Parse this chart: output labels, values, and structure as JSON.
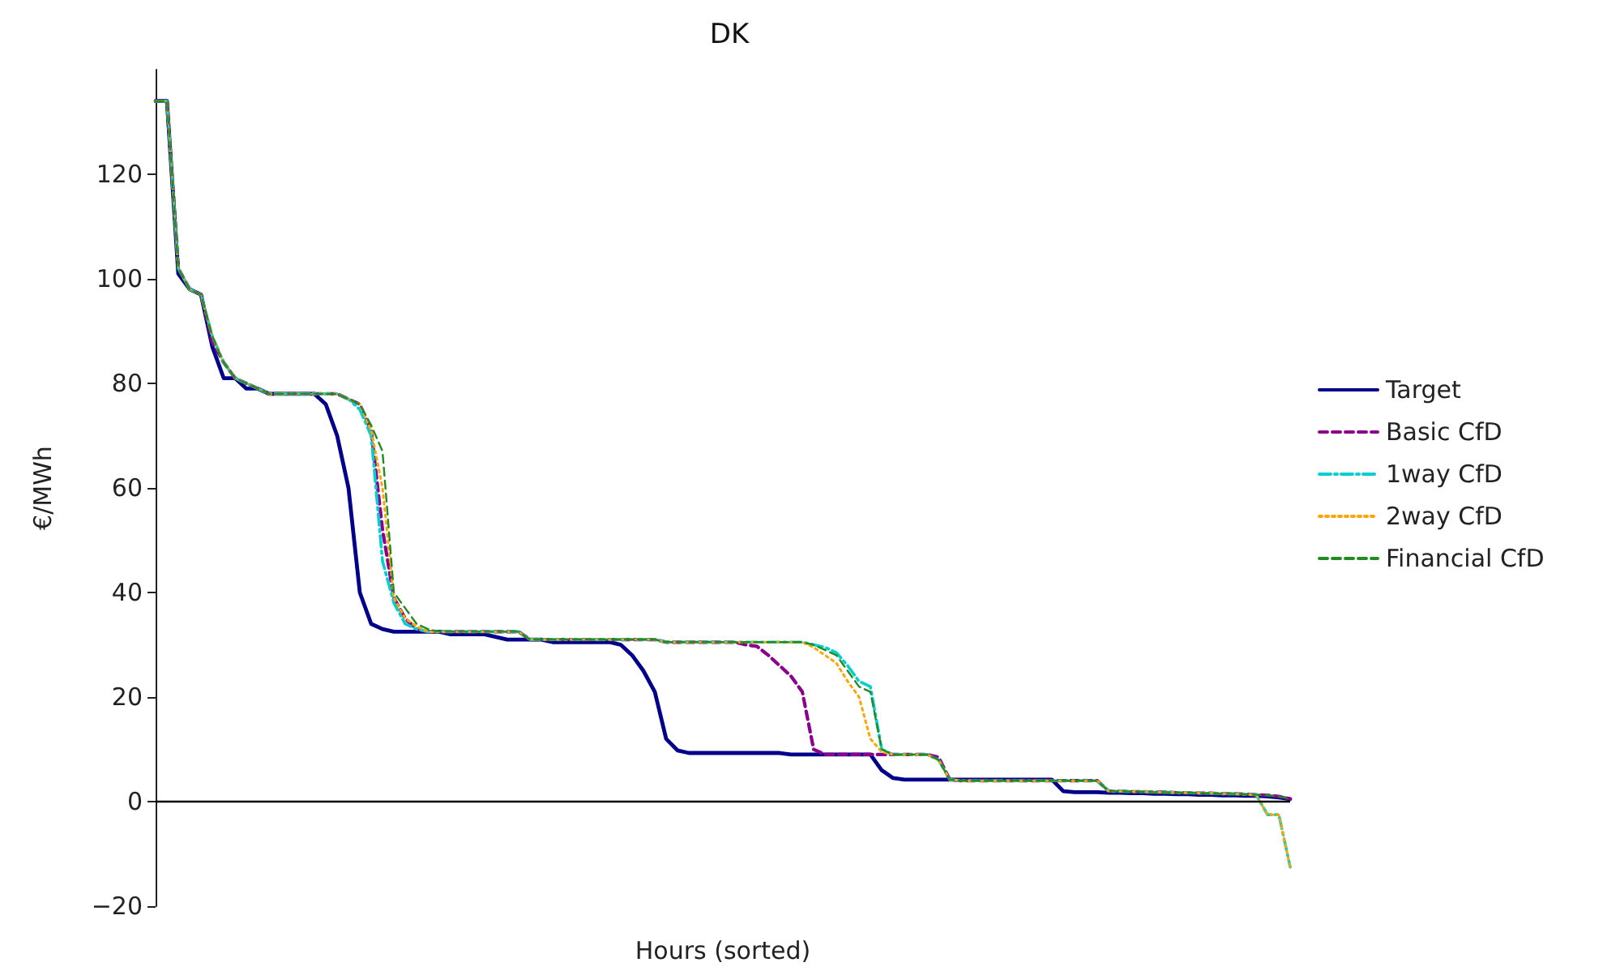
{
  "chart_data": {
    "type": "line",
    "title": "DK",
    "xlabel": "Hours (sorted)",
    "ylabel": "€/MWh",
    "categories": [
      null,
      null,
      null,
      null,
      null,
      null,
      null,
      null,
      null,
      null,
      null,
      null,
      null,
      null,
      null,
      null,
      null,
      null,
      null,
      null,
      null,
      null,
      null,
      null,
      null,
      null,
      null,
      null,
      null,
      null,
      null,
      null,
      null,
      null,
      null,
      null,
      null,
      null,
      null,
      null,
      null,
      null,
      null,
      null,
      null,
      null,
      null,
      null,
      null,
      null,
      null,
      null,
      null,
      null,
      null,
      null,
      null,
      null,
      null,
      null,
      null,
      null,
      null,
      null,
      null,
      null,
      null,
      null,
      null,
      null,
      null,
      null,
      null,
      null,
      null,
      null,
      null,
      null,
      null,
      null,
      null,
      null,
      null,
      null,
      null,
      null,
      null,
      null,
      null,
      null,
      null,
      null,
      null,
      null,
      null,
      null,
      null,
      null,
      null,
      null,
      null
    ],
    "ylim": [
      -20,
      140
    ],
    "yticks": [
      -20,
      0,
      20,
      40,
      60,
      80,
      100,
      120
    ],
    "tick_labels": "y",
    "legend": "right",
    "marker": "none",
    "ref_lines": [
      {
        "axis": "y",
        "value": 0,
        "color": "#000000"
      }
    ],
    "series": [
      {
        "name": "Target",
        "color": "#00008b",
        "line_style": "solid",
        "values": [
          134,
          134,
          101,
          98,
          97,
          87,
          81,
          81,
          79,
          79,
          78,
          78,
          78,
          78,
          78,
          76,
          70,
          60,
          40,
          34,
          33,
          32.5,
          32.5,
          32.5,
          32.5,
          32.5,
          32,
          32,
          32,
          32,
          31.5,
          31,
          31,
          31,
          31,
          30.5,
          30.5,
          30.5,
          30.5,
          30.5,
          30.5,
          30,
          28,
          25,
          21,
          12,
          9.8,
          9.3,
          9.3,
          9.3,
          9.3,
          9.3,
          9.3,
          9.3,
          9.3,
          9.3,
          9,
          9,
          9,
          9,
          9,
          9,
          9,
          9,
          6,
          4.5,
          4.2,
          4.2,
          4.2,
          4.2,
          4.2,
          4.2,
          4.2,
          4.2,
          4.2,
          4.2,
          4.2,
          4.2,
          4.2,
          4.2,
          2,
          1.8,
          1.8,
          1.8,
          1.7,
          1.7,
          1.6,
          1.6,
          1.5,
          1.5,
          1.4,
          1.4,
          1.3,
          1.3,
          1.2,
          1.2,
          1.1,
          1.1,
          1,
          0.8,
          0.5
        ]
      },
      {
        "name": "Basic CfD",
        "color": "#8b008b",
        "line_style": "dashed",
        "values": [
          134,
          134,
          102,
          98,
          97,
          88,
          84,
          81,
          80,
          79,
          78,
          78,
          78,
          78,
          78,
          78,
          78,
          77,
          76,
          71,
          52,
          39,
          35,
          33,
          32.5,
          32.5,
          32.5,
          32.5,
          32.5,
          32.5,
          32.5,
          32.5,
          32.5,
          31,
          31,
          31,
          31,
          31,
          31,
          31,
          31,
          31,
          31,
          31,
          31,
          30.5,
          30.5,
          30.5,
          30.5,
          30.5,
          30.5,
          30.5,
          30,
          29.7,
          28,
          26,
          24,
          21,
          10,
          9,
          9,
          9,
          9,
          9,
          9,
          9,
          9,
          9,
          9,
          8.5,
          4.2,
          4,
          4,
          4,
          4,
          4,
          4,
          4,
          4,
          4,
          4,
          4,
          4,
          4,
          2,
          2,
          1.9,
          1.9,
          1.8,
          1.8,
          1.7,
          1.7,
          1.6,
          1.6,
          1.5,
          1.5,
          1.4,
          1.3,
          1.2,
          1,
          0.5
        ]
      },
      {
        "name": "1way CfD",
        "color": "#00ced1",
        "line_style": "dashdot",
        "values": [
          134,
          134,
          102,
          98,
          97,
          89,
          84,
          81,
          80,
          79,
          78,
          78,
          78,
          78,
          78,
          78,
          78,
          77,
          75,
          70,
          46,
          38,
          34,
          33,
          32.5,
          32.5,
          32.5,
          32.5,
          32.5,
          32.5,
          32.5,
          32.5,
          32.5,
          31,
          31,
          31,
          31,
          31,
          31,
          31,
          31,
          31,
          31,
          31,
          31,
          30.5,
          30.5,
          30.5,
          30.5,
          30.5,
          30.5,
          30.5,
          30.5,
          30.5,
          30.5,
          30.5,
          30.5,
          30.5,
          30,
          29.5,
          28.5,
          26,
          23,
          22,
          10,
          9,
          9,
          9,
          9,
          8,
          4.2,
          4,
          4,
          4,
          4,
          4,
          4,
          4,
          4,
          4,
          4,
          4,
          4,
          4,
          2,
          2,
          1.9,
          1.9,
          1.8,
          1.8,
          1.7,
          1.7,
          1.6,
          1.6,
          1.5,
          1.5,
          1.4,
          1.3,
          -2.5,
          -2.5,
          -12.5
        ]
      },
      {
        "name": "2way CfD",
        "color": "#ffa500",
        "line_style": "dotted",
        "values": [
          134,
          134,
          102,
          98,
          97,
          89,
          84,
          81,
          80,
          79,
          78,
          78,
          78,
          78,
          78,
          78,
          78,
          77,
          76,
          71,
          60,
          39,
          35,
          33.5,
          32.5,
          32.5,
          32.5,
          32.5,
          32.5,
          32.5,
          32.5,
          32.5,
          32.5,
          31,
          31,
          31,
          31,
          31,
          31,
          31,
          31,
          31,
          31,
          31,
          31,
          30.5,
          30.5,
          30.5,
          30.5,
          30.5,
          30.5,
          30.5,
          30.5,
          30.5,
          30.5,
          30.5,
          30.5,
          30.5,
          29.5,
          28,
          26.5,
          23,
          20,
          12,
          9.5,
          9,
          9,
          9,
          9,
          8,
          4.2,
          4,
          4,
          4,
          4,
          4,
          4,
          4,
          4,
          4,
          4,
          4,
          4,
          4,
          2,
          2,
          1.9,
          1.9,
          1.8,
          1.8,
          1.7,
          1.7,
          1.6,
          1.6,
          1.5,
          1.5,
          1.4,
          1.3,
          -2.5,
          -2.5,
          -12.5
        ]
      },
      {
        "name": "Financial CfD",
        "color": "#228b22",
        "line_style": "dashed",
        "values": [
          134,
          134,
          102,
          98,
          97,
          89,
          84,
          81,
          80,
          79,
          78,
          78,
          78,
          78,
          78,
          78,
          78,
          77,
          76,
          72,
          67,
          40,
          37,
          34,
          33,
          32.5,
          32.5,
          32.5,
          32.5,
          32.5,
          32.5,
          32.5,
          32.5,
          31,
          31,
          31,
          31,
          31,
          31,
          31,
          31,
          31,
          31,
          31,
          31,
          30.5,
          30.5,
          30.5,
          30.5,
          30.5,
          30.5,
          30.5,
          30.5,
          30.5,
          30.5,
          30.5,
          30.5,
          30.5,
          30,
          29,
          28,
          25,
          22,
          21,
          10,
          9,
          9,
          9,
          9,
          8,
          4.2,
          4,
          4,
          4,
          4,
          4,
          4,
          4,
          4,
          4,
          4,
          4,
          4,
          4,
          2,
          2,
          1.9,
          1.9,
          1.8,
          1.8,
          1.7,
          1.7,
          1.6,
          1.6,
          1.5,
          1.5,
          1.4,
          1.3,
          1.2,
          1,
          0.5
        ]
      }
    ]
  }
}
